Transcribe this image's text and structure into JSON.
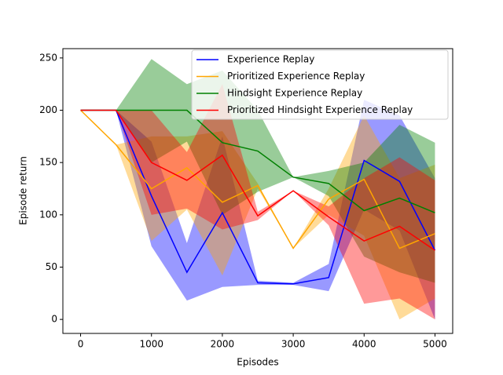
{
  "chart_data": {
    "type": "line",
    "x_label": "Episodes",
    "y_label": "Episode return",
    "x": [
      0,
      500,
      1000,
      1500,
      2000,
      2500,
      3000,
      3500,
      4000,
      4500,
      5000
    ],
    "series": [
      {
        "name": "Experience Replay",
        "color": "blue",
        "values": [
          200,
          200,
          118,
          45,
          102,
          35,
          34,
          40,
          152,
          132,
          66
        ],
        "lower": [
          200,
          200,
          70,
          18,
          31,
          33,
          33,
          27,
          105,
          85,
          0
        ],
        "upper": [
          200,
          200,
          170,
          73,
          175,
          37,
          35,
          53,
          210,
          195,
          135
        ]
      },
      {
        "name": "Prioritized Experience Replay",
        "color": "orange",
        "values": [
          200,
          167,
          125,
          145,
          112,
          128,
          68,
          115,
          134,
          68,
          82
        ],
        "lower": [
          200,
          167,
          75,
          105,
          42,
          125,
          68,
          100,
          80,
          0,
          20
        ],
        "upper": [
          200,
          167,
          175,
          175,
          180,
          130,
          68,
          125,
          195,
          135,
          148
        ]
      },
      {
        "name": "Hindsight Experience Replay",
        "color": "green",
        "values": [
          200,
          200,
          200,
          200,
          169,
          161,
          136,
          130,
          104,
          116,
          102
        ],
        "lower": [
          200,
          200,
          150,
          170,
          100,
          122,
          136,
          118,
          60,
          45,
          35
        ],
        "upper": [
          200,
          200,
          249,
          225,
          238,
          200,
          136,
          142,
          150,
          186,
          169
        ]
      },
      {
        "name": "Prioritized Hindsight Experience Replay",
        "color": "red",
        "values": [
          200,
          200,
          150,
          133,
          157,
          99,
          123,
          98,
          75,
          89,
          66
        ],
        "lower": [
          200,
          200,
          100,
          106,
          86,
          95,
          123,
          90,
          15,
          20,
          0
        ],
        "upper": [
          200,
          200,
          200,
          160,
          225,
          103,
          123,
          108,
          135,
          155,
          133
        ]
      }
    ],
    "xlim": [
      -250,
      5250
    ],
    "xticks": [
      0,
      1000,
      2000,
      3000,
      4000,
      5000
    ],
    "ylim": [
      -13.4,
      258.9
    ],
    "yticks": [
      0,
      50,
      100,
      150,
      200,
      250
    ],
    "legend": "upper right",
    "band_opacity": 0.4
  }
}
